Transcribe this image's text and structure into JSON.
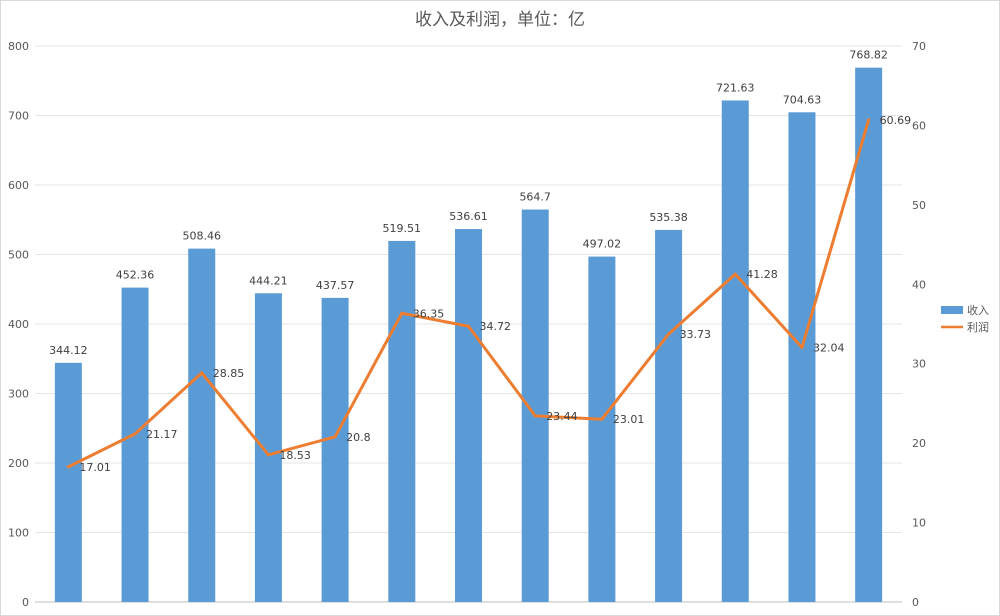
{
  "chart_data": {
    "type": "bar+line",
    "title": "收入及利润，单位：亿",
    "categories": [
      "",
      "",
      "",
      "",
      "",
      "",
      "",
      "",
      "",
      "",
      "",
      "",
      ""
    ],
    "series": [
      {
        "name": "收入",
        "type": "bar",
        "axis": "left",
        "color": "#5b9bd5",
        "values": [
          344.12,
          452.36,
          508.46,
          444.21,
          437.57,
          519.51,
          536.61,
          564.7,
          497.02,
          535.38,
          721.63,
          704.63,
          768.82
        ],
        "labels": [
          "344.12",
          "452.36",
          "508.46",
          "444.21",
          "437.57",
          "519.51",
          "536.61",
          "564.7",
          "497.02",
          "535.38",
          "721.63",
          "704.63",
          "768.82"
        ]
      },
      {
        "name": "利润",
        "type": "line",
        "axis": "right",
        "color": "#ed7d31",
        "values": [
          17.01,
          21.17,
          28.85,
          18.53,
          20.8,
          36.35,
          34.72,
          23.44,
          23.01,
          33.73,
          41.28,
          32.04,
          60.69
        ],
        "labels": [
          "17.01",
          "21.17",
          "28.85",
          "18.53",
          "20.8",
          "36.35",
          "34.72",
          "23.44",
          "23.01",
          "33.73",
          "41.28",
          "32.04",
          "60.69"
        ]
      }
    ],
    "y_left": {
      "min": 0,
      "max": 800,
      "step": 100,
      "ticks": [
        "0",
        "100",
        "200",
        "300",
        "400",
        "500",
        "600",
        "700",
        "800"
      ]
    },
    "y_right": {
      "min": 0,
      "max": 70,
      "step": 10,
      "ticks": [
        "0",
        "10",
        "20",
        "30",
        "40",
        "50",
        "60",
        "70"
      ]
    },
    "grid": true,
    "legend": "right"
  }
}
